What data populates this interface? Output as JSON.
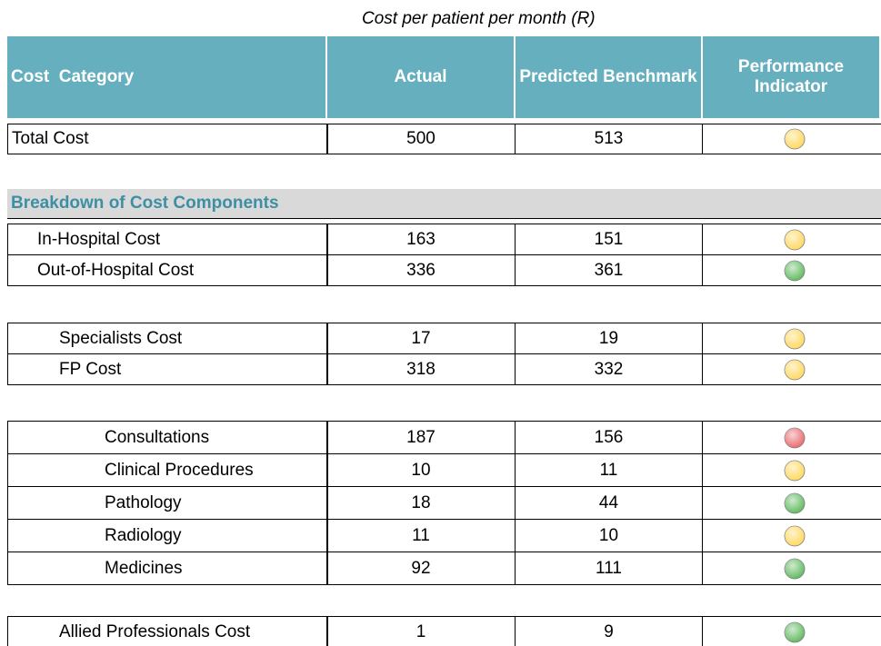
{
  "caption": "Cost per patient per month  (R)",
  "header": [
    "Cost  Category",
    "Actual",
    "Predicted Benchmark",
    "Performance Indicator"
  ],
  "section": "Breakdown of Cost Components",
  "groups": [
    {
      "rows": [
        {
          "label": "Total Cost",
          "actual": 500,
          "benchmark": 513,
          "indicator": "#ffd75a"
        }
      ]
    },
    {
      "rows": [
        {
          "label": "In-Hospital Cost",
          "actual": 163,
          "benchmark": 151,
          "indicator": "#ffd75a"
        },
        {
          "label": "Out-of-Hospital Cost",
          "actual": 336,
          "benchmark": 361,
          "indicator": "#5cb85c"
        }
      ]
    },
    {
      "rows": [
        {
          "label": "Specialists Cost",
          "actual": 17,
          "benchmark": 19,
          "indicator": "#ffd75a"
        },
        {
          "label": "FP Cost",
          "actual": 318,
          "benchmark": 332,
          "indicator": "#ffd75a"
        }
      ]
    },
    {
      "rows": [
        {
          "label": "Consultations",
          "actual": 187,
          "benchmark": 156,
          "indicator": "#e8676b"
        },
        {
          "label": "Clinical Procedures",
          "actual": 10,
          "benchmark": 11,
          "indicator": "#ffd75a"
        },
        {
          "label": "Pathology",
          "actual": 18,
          "benchmark": 44,
          "indicator": "#5cb85c"
        },
        {
          "label": "Radiology",
          "actual": 11,
          "benchmark": 10,
          "indicator": "#ffd75a"
        },
        {
          "label": "Medicines",
          "actual": 92,
          "benchmark": 111,
          "indicator": "#5cb85c"
        }
      ]
    },
    {
      "rows": [
        {
          "label": "Allied Professionals Cost",
          "actual": 1,
          "benchmark": 9,
          "indicator": "#5cb85c"
        }
      ]
    }
  ]
}
